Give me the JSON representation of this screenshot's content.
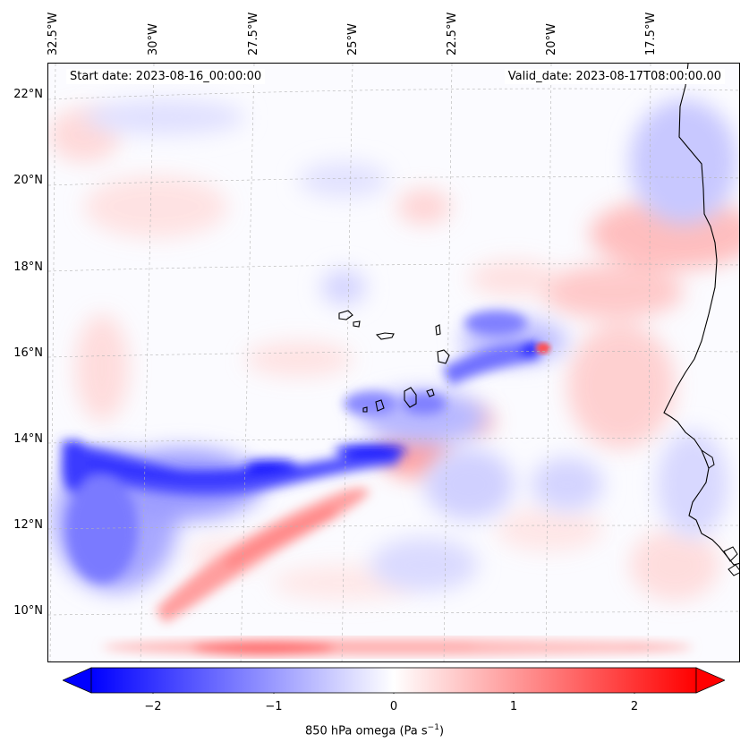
{
  "map": {
    "start_date": "Start date: 2023-08-16_00:00:00",
    "valid_date": "Valid_date: 2023-08-17T08:00:00.00",
    "lon_ticks": [
      "32.5°W",
      "30°W",
      "27.5°W",
      "25°W",
      "22.5°W",
      "20°W",
      "17.5°W"
    ],
    "lat_ticks": [
      "22°N",
      "20°N",
      "18°N",
      "16°N",
      "14°N",
      "12°N",
      "10°N"
    ],
    "field": "850 hPa omega",
    "features": [
      "coastline-west-africa",
      "cape-verde-islands",
      "omega-contour-field"
    ]
  },
  "colorbar": {
    "ticks": [
      "−2",
      "−1",
      "0",
      "1",
      "2"
    ],
    "label": "850 hPa omega (Pa s",
    "label_sup": "−1",
    "label_end": ")",
    "colormap": "bwr",
    "range": [
      -2.7,
      2.7
    ],
    "extend": "both",
    "color_min": "#0000ff",
    "color_mid": "#ffffff",
    "color_max": "#ff0000"
  }
}
